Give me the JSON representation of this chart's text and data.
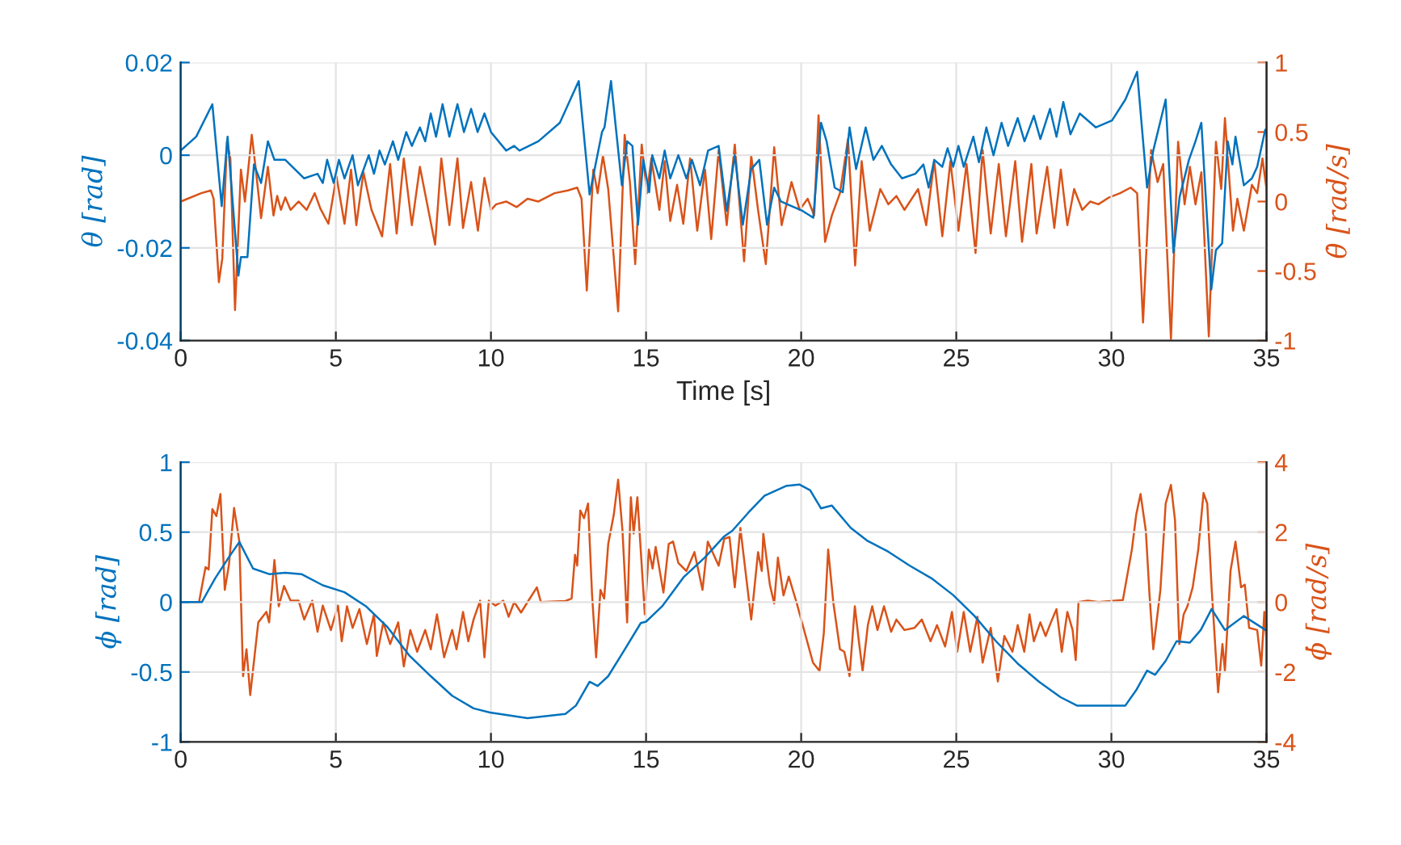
{
  "chart_data": [
    {
      "type": "line",
      "xlabel": "Time [s]",
      "ylabel": "θ [rad]",
      "y2label": "θ̇ [rad/s]",
      "xlim": [
        0,
        35
      ],
      "xticks": [
        0,
        5,
        10,
        15,
        20,
        25,
        30,
        35
      ],
      "ylim": [
        -0.04,
        0.02
      ],
      "yticks": [
        -0.04,
        -0.02,
        0,
        0.02
      ],
      "y2lim": [
        -1,
        1
      ],
      "y2ticks": [
        -1,
        -0.5,
        0,
        0.5,
        1
      ],
      "grid": true,
      "line_style": "solid",
      "series": [
        {
          "color": "#0072bd",
          "axis": "y",
          "x": [
            0,
            0.5,
            1.02,
            1.32,
            1.51,
            1.86,
            1.94,
            2.15,
            2.36,
            2.59,
            2.81,
            3.02,
            3.37,
            3.98,
            4.41,
            4.58,
            4.72,
            4.93,
            5.1,
            5.28,
            5.54,
            5.71,
            6.06,
            6.23,
            6.41,
            6.58,
            6.84,
            7.01,
            7.27,
            7.45,
            7.71,
            7.88,
            8.06,
            8.23,
            8.44,
            8.66,
            8.92,
            9.13,
            9.36,
            9.57,
            9.79,
            10.0,
            10.49,
            10.75,
            10.92,
            11.53,
            12.22,
            12.83,
            13.18,
            13.58,
            13.66,
            13.87,
            14.22,
            14.39,
            14.56,
            14.74,
            14.91,
            15.1,
            15.2,
            15.43,
            15.6,
            15.78,
            16.04,
            16.3,
            16.48,
            16.74,
            17.0,
            17.34,
            17.6,
            17.86,
            18.12,
            18.39,
            18.65,
            18.9,
            19.13,
            19.35,
            19.69,
            20.04,
            20.39,
            20.64,
            20.82,
            21.08,
            21.34,
            21.56,
            21.77,
            22.08,
            22.33,
            22.6,
            22.9,
            23.25,
            23.68,
            23.94,
            24.11,
            24.29,
            24.55,
            24.72,
            24.9,
            25.07,
            25.24,
            25.55,
            25.73,
            25.97,
            26.2,
            26.46,
            26.67,
            26.98,
            27.2,
            27.5,
            27.71,
            28.02,
            28.23,
            28.45,
            28.68,
            28.98,
            29.5,
            30.02,
            30.45,
            30.83,
            31.15,
            31.35,
            31.75,
            32.0,
            32.2,
            32.5,
            32.71,
            32.9,
            33.22,
            33.37,
            33.57,
            33.75,
            33.9,
            34.0,
            34.27,
            34.53,
            34.7,
            34.96
          ],
          "values": [
            0.001,
            0.004,
            0.011,
            -0.011,
            0.004,
            -0.026,
            -0.022,
            -0.022,
            -0.002,
            -0.006,
            0.003,
            -0.001,
            -0.001,
            -0.005,
            -0.004,
            -0.006,
            -0.001,
            -0.006,
            -0.001,
            -0.005,
            0.0,
            -0.0065,
            0.0,
            -0.004,
            0.001,
            -0.002,
            0.003,
            -0.001,
            0.005,
            0.002,
            0.006,
            0.003,
            0.009,
            0.004,
            0.011,
            0.004,
            0.011,
            0.005,
            0.01,
            0.005,
            0.009,
            0.005,
            0.001,
            0.002,
            0.001,
            0.003,
            0.007,
            0.016,
            -0.0085,
            0.005,
            0.006,
            0.016,
            -0.0065,
            0.003,
            0.002,
            -0.015,
            -0.001,
            -0.008,
            0.0,
            -0.005,
            0.001,
            -0.005,
            0.0,
            -0.005,
            -0.001,
            -0.0065,
            0.001,
            0.002,
            -0.012,
            0.0,
            -0.015,
            -0.003,
            -0.001,
            -0.015,
            -0.007,
            -0.01,
            -0.011,
            -0.012,
            -0.0135,
            0.007,
            0.003,
            -0.007,
            -0.008,
            0.006,
            -0.003,
            0.006,
            -0.001,
            0.002,
            -0.002,
            -0.005,
            -0.004,
            -0.002,
            -0.007,
            -0.001,
            -0.0025,
            0.0015,
            -0.0025,
            0.002,
            -0.0025,
            0.004,
            -0.0015,
            0.006,
            0.0,
            0.007,
            0.002,
            0.008,
            0.003,
            0.0085,
            0.0035,
            0.01,
            0.004,
            0.0115,
            0.0045,
            0.009,
            0.006,
            0.0075,
            0.012,
            0.018,
            -0.007,
            0.001,
            0.012,
            -0.021,
            -0.009,
            -0.001,
            0.003,
            0.007,
            -0.029,
            -0.0205,
            -0.019,
            0.003,
            -0.002,
            0.004,
            -0.0065,
            -0.005,
            -0.0025,
            0.0055
          ]
        },
        {
          "color": "#d95319",
          "axis": "y2",
          "x": [
            0,
            0.66,
            0.97,
            1.06,
            1.23,
            1.34,
            1.49,
            1.6,
            1.75,
            1.94,
            2.07,
            2.29,
            2.41,
            2.59,
            2.81,
            2.99,
            3.11,
            3.23,
            3.37,
            3.54,
            3.8,
            4.06,
            4.32,
            4.5,
            4.76,
            5.02,
            5.28,
            5.49,
            5.66,
            5.89,
            6.15,
            6.49,
            6.75,
            6.96,
            7.19,
            7.45,
            7.71,
            8.2,
            8.4,
            8.66,
            8.92,
            9.1,
            9.36,
            9.58,
            9.79,
            10.0,
            10.17,
            10.49,
            10.83,
            11.18,
            11.53,
            12.05,
            12.48,
            12.78,
            12.92,
            13.09,
            13.3,
            13.44,
            13.61,
            13.78,
            14.1,
            14.31,
            14.48,
            14.65,
            14.86,
            15.03,
            15.17,
            15.43,
            15.6,
            15.78,
            16.0,
            16.2,
            16.42,
            16.65,
            16.9,
            17.1,
            17.34,
            17.6,
            17.86,
            18.16,
            18.39,
            18.61,
            18.86,
            19.13,
            19.37,
            19.69,
            19.95,
            20.21,
            20.42,
            20.56,
            20.77,
            20.99,
            21.25,
            21.51,
            21.74,
            21.95,
            22.21,
            22.55,
            22.81,
            23.07,
            23.33,
            23.77,
            24.03,
            24.29,
            24.55,
            24.81,
            25.07,
            25.33,
            25.62,
            25.85,
            26.11,
            26.37,
            26.6,
            26.9,
            27.12,
            27.42,
            27.59,
            27.93,
            28.16,
            28.37,
            28.58,
            28.8,
            29.06,
            29.32,
            29.58,
            29.93,
            30.28,
            30.62,
            30.83,
            31.02,
            31.28,
            31.49,
            31.67,
            31.92,
            32.15,
            32.36,
            32.53,
            32.71,
            32.9,
            33.14,
            33.37,
            33.54,
            33.66,
            33.92,
            34.06,
            34.27,
            34.53,
            34.7,
            34.87,
            35.0
          ],
          "values": [
            0.0,
            0.06,
            0.08,
            0.02,
            -0.58,
            -0.41,
            0.43,
            0.31,
            -0.78,
            0.23,
            0.0,
            0.48,
            0.25,
            -0.12,
            0.25,
            -0.1,
            0.04,
            -0.06,
            0.03,
            -0.06,
            0.0,
            -0.06,
            0.06,
            -0.05,
            -0.16,
            0.18,
            -0.16,
            0.23,
            -0.17,
            0.21,
            -0.06,
            -0.25,
            0.27,
            -0.23,
            0.31,
            -0.17,
            0.25,
            -0.31,
            0.31,
            -0.17,
            0.31,
            -0.19,
            0.14,
            -0.21,
            0.17,
            -0.06,
            -0.02,
            0.0,
            -0.04,
            0.02,
            0.0,
            0.06,
            0.08,
            0.1,
            0.02,
            -0.64,
            0.23,
            0.06,
            0.33,
            0.09,
            -0.79,
            0.48,
            0.14,
            -0.45,
            0.41,
            0.06,
            0.31,
            -0.06,
            0.29,
            -0.14,
            0.12,
            -0.16,
            0.31,
            -0.21,
            0.23,
            -0.27,
            0.37,
            -0.17,
            0.41,
            -0.43,
            0.33,
            -0.06,
            -0.45,
            0.39,
            -0.17,
            0.14,
            -0.06,
            0.02,
            -0.1,
            0.62,
            -0.29,
            -0.1,
            0.06,
            0.45,
            -0.46,
            0.29,
            -0.21,
            0.09,
            -0.02,
            0.04,
            -0.06,
            0.09,
            -0.17,
            0.29,
            -0.25,
            0.29,
            -0.21,
            0.27,
            -0.37,
            0.37,
            -0.23,
            0.27,
            -0.25,
            0.29,
            -0.29,
            0.27,
            -0.23,
            0.25,
            -0.19,
            0.23,
            -0.17,
            0.09,
            -0.06,
            0.0,
            -0.02,
            0.03,
            0.06,
            0.1,
            0.06,
            -0.87,
            0.37,
            0.14,
            0.27,
            -0.99,
            0.43,
            -0.02,
            0.25,
            -0.02,
            0.21,
            -0.97,
            0.43,
            0.09,
            0.6,
            -0.21,
            0.02,
            -0.21,
            0.12,
            0.06,
            0.31,
            0.09
          ]
        }
      ]
    },
    {
      "type": "line",
      "ylabel": "ϕ [rad]",
      "y2label": "ϕ̇ [rad/s]",
      "xlim": [
        0,
        35
      ],
      "xticks": [
        0,
        5,
        10,
        15,
        20,
        25,
        30,
        35
      ],
      "ylim": [
        -1,
        1
      ],
      "yticks": [
        -1,
        -0.5,
        0,
        0.5,
        1
      ],
      "y2lim": [
        -4,
        4
      ],
      "y2ticks": [
        -4,
        -2,
        0,
        2,
        4
      ],
      "grid": true,
      "line_style": "solid",
      "series": [
        {
          "color": "#0072bd",
          "axis": "y",
          "x": [
            0,
            0.68,
            1.11,
            1.55,
            1.89,
            2.33,
            2.85,
            3.37,
            3.89,
            4.58,
            5.28,
            5.97,
            6.67,
            7.36,
            8.06,
            8.75,
            9.44,
            9.97,
            11.18,
            12.4,
            12.74,
            13.18,
            13.44,
            13.78,
            14.31,
            14.83,
            15.0,
            15.52,
            16.22,
            16.9,
            17.52,
            17.78,
            18.3,
            18.82,
            19.51,
            19.95,
            20.29,
            20.64,
            20.99,
            21.6,
            22.12,
            22.81,
            23.5,
            24.2,
            24.9,
            25.59,
            26.28,
            26.98,
            27.67,
            28.36,
            28.89,
            30.45,
            30.8,
            31.15,
            31.41,
            31.75,
            32.1,
            32.53,
            32.88,
            33.23,
            33.66,
            34.27,
            34.97
          ],
          "values": [
            0.0,
            0.0,
            0.17,
            0.32,
            0.43,
            0.24,
            0.2,
            0.21,
            0.2,
            0.12,
            0.07,
            -0.03,
            -0.18,
            -0.38,
            -0.53,
            -0.67,
            -0.76,
            -0.79,
            -0.83,
            -0.8,
            -0.74,
            -0.57,
            -0.6,
            -0.53,
            -0.34,
            -0.15,
            -0.14,
            -0.03,
            0.18,
            0.32,
            0.47,
            0.51,
            0.64,
            0.76,
            0.83,
            0.84,
            0.8,
            0.67,
            0.69,
            0.53,
            0.44,
            0.36,
            0.26,
            0.17,
            0.05,
            -0.1,
            -0.28,
            -0.44,
            -0.57,
            -0.68,
            -0.74,
            -0.74,
            -0.63,
            -0.49,
            -0.52,
            -0.42,
            -0.28,
            -0.29,
            -0.2,
            -0.05,
            -0.2,
            -0.1,
            -0.2
          ]
        },
        {
          "color": "#d95319",
          "axis": "y2",
          "x": [
            0,
            0.59,
            0.8,
            0.9,
            1.02,
            1.15,
            1.28,
            1.42,
            1.55,
            1.72,
            1.89,
            2.01,
            2.12,
            2.24,
            2.5,
            2.76,
            2.85,
            3.02,
            3.16,
            3.33,
            3.54,
            3.8,
            3.98,
            4.24,
            4.41,
            4.58,
            4.84,
            5.07,
            5.19,
            5.36,
            5.54,
            5.76,
            6.0,
            6.23,
            6.32,
            6.53,
            6.75,
            7.01,
            7.19,
            7.4,
            7.62,
            7.88,
            8.06,
            8.26,
            8.49,
            8.75,
            8.89,
            9.1,
            9.27,
            9.44,
            9.65,
            9.79,
            9.93,
            10.14,
            10.4,
            10.57,
            10.75,
            10.97,
            11.18,
            11.48,
            11.61,
            12.4,
            12.6,
            12.71,
            12.78,
            12.88,
            13.0,
            13.13,
            13.26,
            13.39,
            13.53,
            13.65,
            13.78,
            13.96,
            14.1,
            14.24,
            14.39,
            14.51,
            14.6,
            14.72,
            14.96,
            15.09,
            15.21,
            15.31,
            15.56,
            15.73,
            15.87,
            16.04,
            16.3,
            16.56,
            16.82,
            16.99,
            17.34,
            17.52,
            17.69,
            17.86,
            18.04,
            18.39,
            18.61,
            18.73,
            18.78,
            18.99,
            19.13,
            19.25,
            19.43,
            19.6,
            19.86,
            20.12,
            20.38,
            20.59,
            20.73,
            20.87,
            21.04,
            21.25,
            21.39,
            21.56,
            21.73,
            21.86,
            21.98,
            22.15,
            22.29,
            22.46,
            22.67,
            22.9,
            23.07,
            23.33,
            23.65,
            23.89,
            24.17,
            24.38,
            24.64,
            24.86,
            25.03,
            25.24,
            25.45,
            25.68,
            25.85,
            26.11,
            26.34,
            26.55,
            26.81,
            26.98,
            27.19,
            27.36,
            27.5,
            27.71,
            27.88,
            28.05,
            28.23,
            28.4,
            28.58,
            28.75,
            28.85,
            28.94,
            29.24,
            29.58,
            30.37,
            30.66,
            30.8,
            30.94,
            31.11,
            31.23,
            31.35,
            31.58,
            31.75,
            31.92,
            32.05,
            32.19,
            32.33,
            32.45,
            32.62,
            32.8,
            32.97,
            33.09,
            33.23,
            33.44,
            33.58,
            33.66,
            33.84,
            34.0,
            34.18,
            34.3,
            34.44,
            34.7,
            34.83,
            34.93,
            35.0
          ],
          "values": [
            0.0,
            0.0,
            1.0,
            0.93,
            2.66,
            2.46,
            3.09,
            0.35,
            1.04,
            2.69,
            1.73,
            -2.12,
            -1.35,
            -2.66,
            -0.58,
            -0.28,
            -0.58,
            1.2,
            -0.12,
            0.46,
            0.04,
            0.04,
            -0.5,
            0.04,
            -0.85,
            -0.1,
            -0.8,
            -0.1,
            -1.12,
            -0.12,
            -0.74,
            -0.2,
            -1.2,
            -0.35,
            -1.54,
            -0.58,
            -1.2,
            -0.58,
            -1.84,
            -0.8,
            -1.42,
            -0.8,
            -1.35,
            -0.35,
            -1.58,
            -0.8,
            -1.35,
            -0.28,
            -1.12,
            -0.5,
            0.04,
            -1.58,
            0.04,
            -0.1,
            0.04,
            -0.42,
            0.0,
            -0.3,
            0.0,
            0.42,
            0.0,
            0.03,
            0.1,
            1.35,
            1.04,
            2.62,
            2.4,
            2.82,
            0.19,
            -1.58,
            0.35,
            0.1,
            1.66,
            2.5,
            3.5,
            2.04,
            -0.58,
            3.0,
            1.96,
            3.0,
            -0.35,
            1.5,
            0.96,
            1.58,
            0.27,
            1.66,
            1.73,
            1.12,
            0.89,
            1.43,
            0.35,
            1.73,
            1.04,
            1.81,
            1.86,
            0.42,
            2.12,
            -0.5,
            1.43,
            0.89,
            1.96,
            0.5,
            -0.04,
            1.27,
            0.19,
            0.73,
            -0.04,
            -0.89,
            -1.73,
            -1.97,
            -0.89,
            1.5,
            -0.04,
            -1.35,
            -1.42,
            -2.12,
            -0.12,
            -1.12,
            -1.97,
            -0.66,
            -0.12,
            -0.8,
            -0.12,
            -0.85,
            -0.5,
            -0.8,
            -0.74,
            -0.5,
            -1.12,
            -0.66,
            -1.27,
            -0.28,
            -1.42,
            -0.28,
            -1.42,
            -0.42,
            -1.73,
            -0.74,
            -2.27,
            -0.97,
            -1.42,
            -0.66,
            -1.42,
            -0.35,
            -1.12,
            -0.58,
            -0.97,
            -0.58,
            -0.2,
            -1.42,
            -0.28,
            -0.8,
            -1.66,
            0.0,
            0.04,
            0.0,
            0.06,
            1.5,
            2.5,
            3.09,
            2.04,
            0.19,
            -1.35,
            0.35,
            2.82,
            3.35,
            2.35,
            -1.2,
            -0.35,
            -0.12,
            0.42,
            1.5,
            3.12,
            2.82,
            0.42,
            -2.58,
            -1.2,
            -1.97,
            0.89,
            1.73,
            0.42,
            0.5,
            -0.74,
            -0.8,
            -1.82,
            -0.28,
            -1.12
          ]
        }
      ]
    }
  ]
}
